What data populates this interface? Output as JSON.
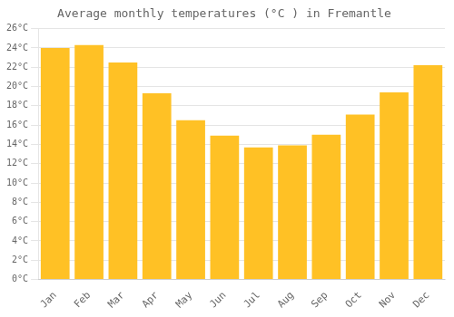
{
  "chart_data": {
    "type": "bar",
    "title": "Average monthly temperatures (°C ) in Fremantle",
    "categories": [
      "Jan",
      "Feb",
      "Mar",
      "Apr",
      "May",
      "Jun",
      "Jul",
      "Aug",
      "Sep",
      "Oct",
      "Nov",
      "Dec"
    ],
    "values": [
      24.0,
      24.3,
      22.5,
      19.3,
      16.5,
      14.9,
      13.7,
      13.9,
      15.0,
      17.1,
      19.4,
      22.2
    ],
    "color": "#FFC125",
    "ylim": [
      0,
      26
    ],
    "yticks": [
      {
        "value": 0,
        "label": "0°C"
      },
      {
        "value": 2,
        "label": "2°C"
      },
      {
        "value": 4,
        "label": "4°C"
      },
      {
        "value": 6,
        "label": "6°C"
      },
      {
        "value": 8,
        "label": "8°C"
      },
      {
        "value": 10,
        "label": "10°C"
      },
      {
        "value": 12,
        "label": "12°C"
      },
      {
        "value": 14,
        "label": "14°C"
      },
      {
        "value": 16,
        "label": "16°C"
      },
      {
        "value": 18,
        "label": "18°C"
      },
      {
        "value": 20,
        "label": "20°C"
      },
      {
        "value": 22,
        "label": "22°C"
      },
      {
        "value": 24,
        "label": "24°C"
      },
      {
        "value": 26,
        "label": "26°C"
      }
    ],
    "grid": true
  }
}
